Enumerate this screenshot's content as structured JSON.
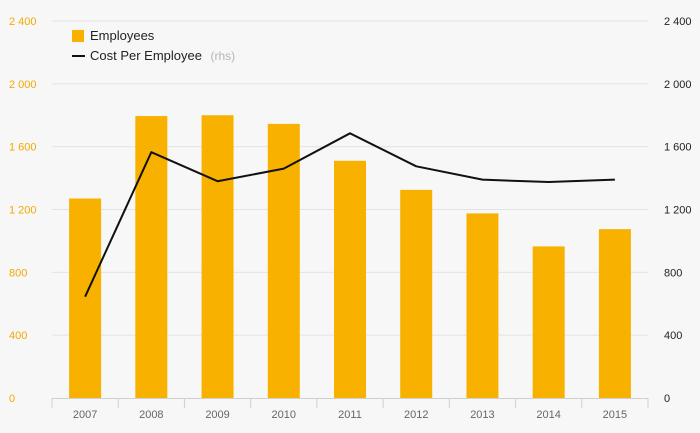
{
  "chart_data": {
    "type": "bar",
    "categories": [
      "2007",
      "2008",
      "2009",
      "2010",
      "2011",
      "2012",
      "2013",
      "2014",
      "2015"
    ],
    "series": [
      {
        "name": "Employees",
        "type": "bar",
        "axis": "left",
        "color": "#f9b100",
        "values": [
          1270,
          1795,
          1800,
          1745,
          1510,
          1325,
          1175,
          965,
          1075
        ]
      },
      {
        "name": "Cost Per Employee",
        "type": "line",
        "axis": "right",
        "color": "#111111",
        "values": [
          645,
          1565,
          1380,
          1460,
          1685,
          1475,
          1390,
          1375,
          1390
        ]
      }
    ],
    "yleft": {
      "ylim": [
        0,
        2400
      ],
      "ticks": [
        "0",
        "400",
        "800",
        "1 200",
        "1 600",
        "2 000",
        "2 400"
      ],
      "color": "#f2a900"
    },
    "yright": {
      "ylim": [
        0,
        2400
      ],
      "ticks": [
        "0",
        "400",
        "800",
        "1 200",
        "1 600",
        "2 000",
        "2 400"
      ],
      "color": "#222222"
    },
    "legend": {
      "position": "top-left",
      "items": [
        {
          "label": "Employees",
          "note": ""
        },
        {
          "label": "Cost Per Employee",
          "note": "(rhs)"
        }
      ]
    },
    "grid": true
  }
}
